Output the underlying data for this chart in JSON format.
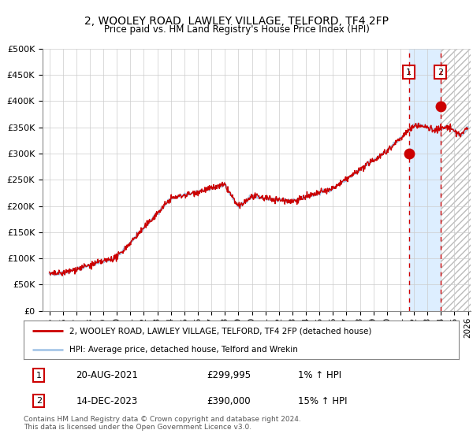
{
  "title": "2, WOOLEY ROAD, LAWLEY VILLAGE, TELFORD, TF4 2FP",
  "subtitle": "Price paid vs. HM Land Registry's House Price Index (HPI)",
  "legend_line1": "2, WOOLEY ROAD, LAWLEY VILLAGE, TELFORD, TF4 2FP (detached house)",
  "legend_line2": "HPI: Average price, detached house, Telford and Wrekin",
  "sale1_date": "20-AUG-2021",
  "sale1_price": "£299,995",
  "sale1_hpi": "1% ↑ HPI",
  "sale2_date": "14-DEC-2023",
  "sale2_price": "£390,000",
  "sale2_hpi": "15% ↑ HPI",
  "copyright": "Contains HM Land Registry data © Crown copyright and database right 2024.\nThis data is licensed under the Open Government Licence v3.0.",
  "ylim": [
    0,
    500000
  ],
  "yticks": [
    0,
    50000,
    100000,
    150000,
    200000,
    250000,
    300000,
    350000,
    400000,
    450000,
    500000
  ],
  "hpi_color": "#a8c8e8",
  "price_color": "#cc0000",
  "marker_color": "#cc0000",
  "bg_highlight_color": "#ddeeff",
  "vline_color": "#cc0000",
  "grid_color": "#cccccc",
  "sale1_year": 2021.62,
  "sale2_year": 2023.96,
  "xmin": 1994.5,
  "xmax": 2026.2,
  "xtick_years": [
    1995,
    1996,
    1997,
    1998,
    1999,
    2000,
    2001,
    2002,
    2003,
    2004,
    2005,
    2006,
    2007,
    2008,
    2009,
    2010,
    2011,
    2012,
    2013,
    2014,
    2015,
    2016,
    2017,
    2018,
    2019,
    2020,
    2021,
    2022,
    2023,
    2024,
    2025,
    2026
  ]
}
